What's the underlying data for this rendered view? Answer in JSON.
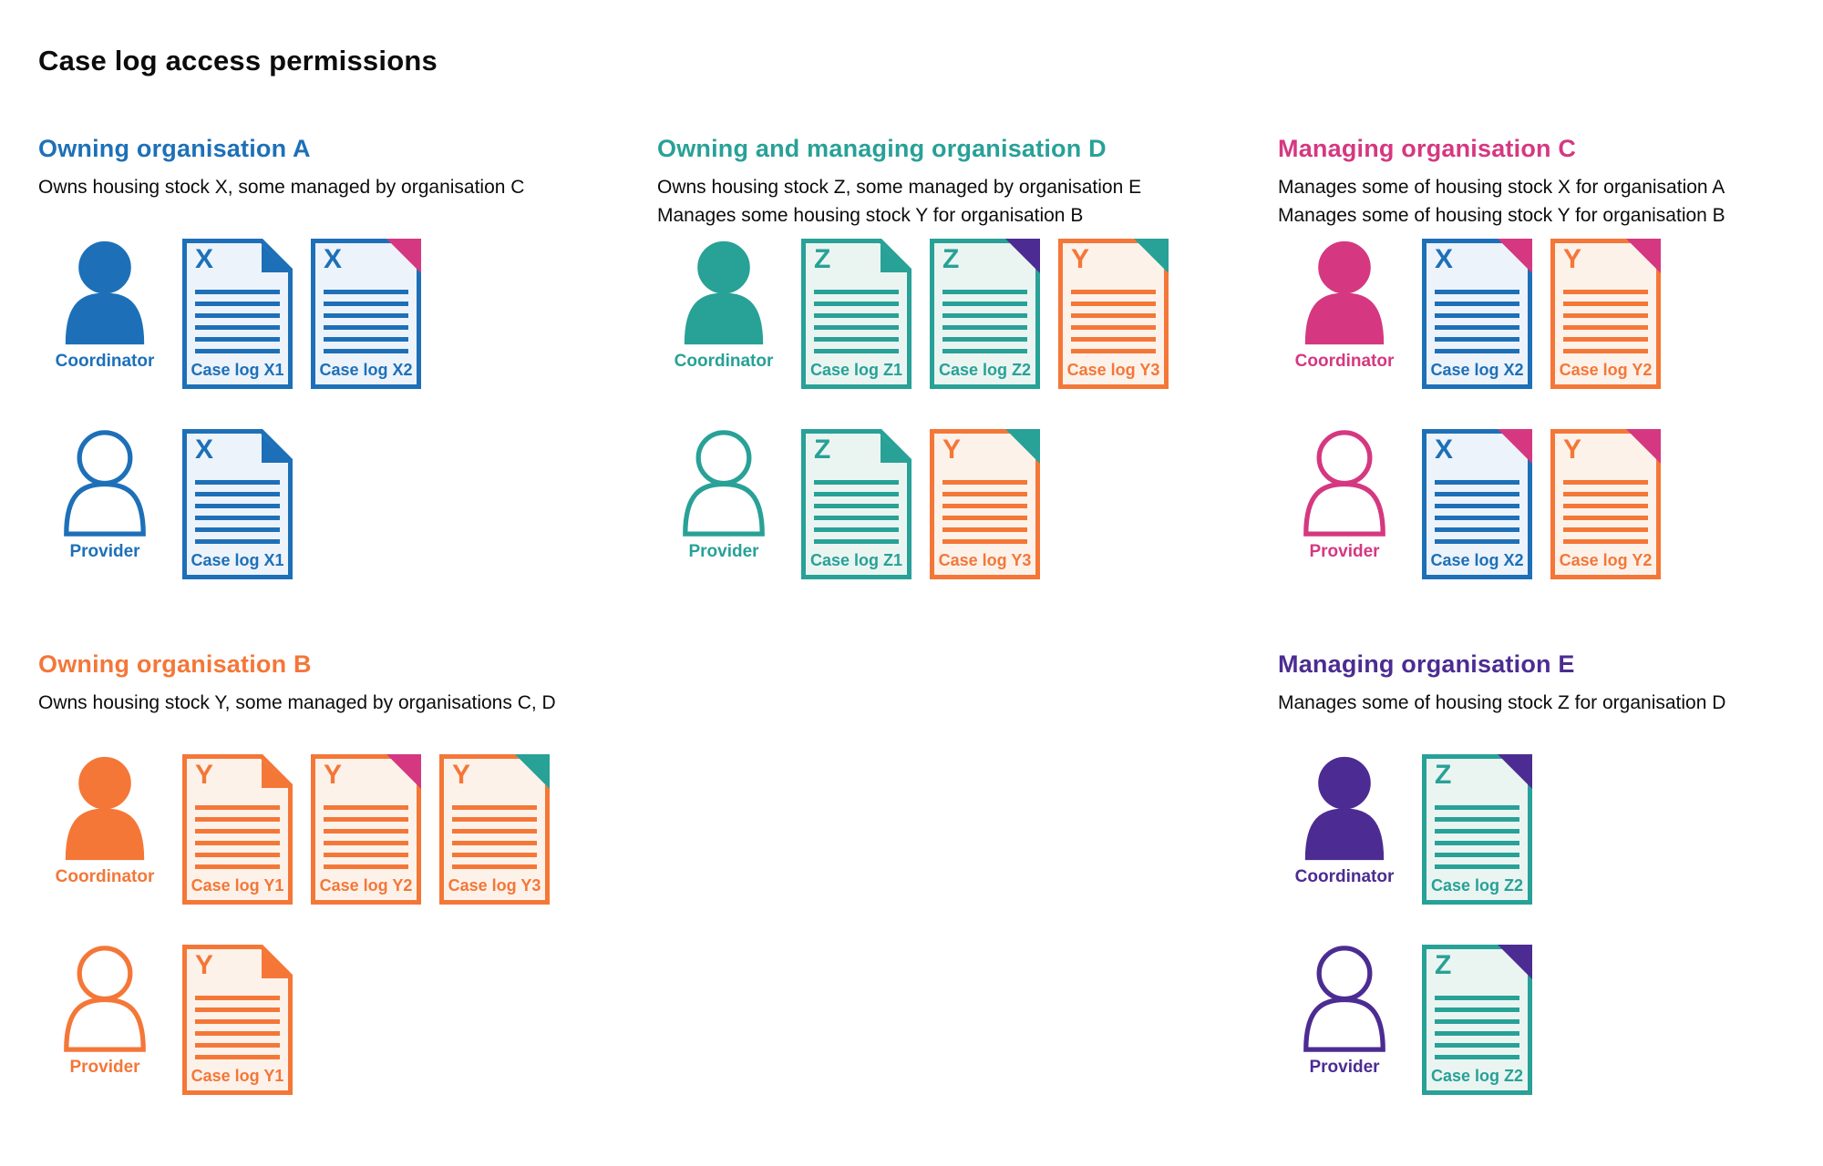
{
  "page": {
    "title": "Case log access permissions"
  },
  "colors": {
    "blue": "#1d70b8",
    "teal": "#28a197",
    "pink": "#d53880",
    "orange": "#f47738",
    "purple": "#4c2c92",
    "text": "#0b0c0c"
  },
  "tints": {
    "blue": "#edf3fa",
    "teal": "#eaf5f2",
    "orange": "#fdf2ea"
  },
  "sections": [
    {
      "id": "owning-organisation-a",
      "heading": "Owning organisation A",
      "color": "blue",
      "description": [
        "Owns housing stock X, some managed by organisation C"
      ],
      "rows": [
        {
          "role": "Coordinator",
          "icon": "person-filled-icon",
          "docs": [
            {
              "letter": "X",
              "label": "Case log X1",
              "doc_color": "blue",
              "fold_color": "blue",
              "fold_style": "own"
            },
            {
              "letter": "X",
              "label": "Case log X2",
              "doc_color": "blue",
              "fold_color": "pink",
              "fold_style": "foreign"
            }
          ]
        },
        {
          "role": "Provider",
          "icon": "person-outline-icon",
          "docs": [
            {
              "letter": "X",
              "label": "Case log X1",
              "doc_color": "blue",
              "fold_color": "blue",
              "fold_style": "own"
            }
          ]
        }
      ]
    },
    {
      "id": "owning-and-managing-organisation-d",
      "heading": "Owning and managing organisation D",
      "color": "teal",
      "description": [
        "Owns housing stock Z, some managed by organisation E",
        "Manages some housing stock Y for organisation B"
      ],
      "rows": [
        {
          "role": "Coordinator",
          "icon": "person-filled-icon",
          "docs": [
            {
              "letter": "Z",
              "label": "Case log Z1",
              "doc_color": "teal",
              "fold_color": "teal",
              "fold_style": "own"
            },
            {
              "letter": "Z",
              "label": "Case log Z2",
              "doc_color": "teal",
              "fold_color": "purple",
              "fold_style": "foreign"
            },
            {
              "letter": "Y",
              "label": "Case log Y3",
              "doc_color": "orange",
              "fold_color": "teal",
              "fold_style": "foreign"
            }
          ]
        },
        {
          "role": "Provider",
          "icon": "person-outline-icon",
          "docs": [
            {
              "letter": "Z",
              "label": "Case log Z1",
              "doc_color": "teal",
              "fold_color": "teal",
              "fold_style": "own"
            },
            {
              "letter": "Y",
              "label": "Case log Y3",
              "doc_color": "orange",
              "fold_color": "teal",
              "fold_style": "foreign"
            }
          ]
        }
      ]
    },
    {
      "id": "managing-organisation-c",
      "heading": "Managing organisation C",
      "color": "pink",
      "description": [
        "Manages some of housing stock X for organisation A",
        "Manages some of housing stock Y for organisation B"
      ],
      "rows": [
        {
          "role": "Coordinator",
          "icon": "person-filled-icon",
          "docs": [
            {
              "letter": "X",
              "label": "Case log X2",
              "doc_color": "blue",
              "fold_color": "pink",
              "fold_style": "foreign"
            },
            {
              "letter": "Y",
              "label": "Case log Y2",
              "doc_color": "orange",
              "fold_color": "pink",
              "fold_style": "foreign"
            }
          ]
        },
        {
          "role": "Provider",
          "icon": "person-outline-icon",
          "docs": [
            {
              "letter": "X",
              "label": "Case log X2",
              "doc_color": "blue",
              "fold_color": "pink",
              "fold_style": "foreign"
            },
            {
              "letter": "Y",
              "label": "Case log Y2",
              "doc_color": "orange",
              "fold_color": "pink",
              "fold_style": "foreign"
            }
          ]
        }
      ]
    },
    {
      "id": "owning-organisation-b",
      "heading": "Owning organisation B",
      "color": "orange",
      "description": [
        "Owns housing stock Y, some managed by organisations C, D"
      ],
      "rows": [
        {
          "role": "Coordinator",
          "icon": "person-filled-icon",
          "docs": [
            {
              "letter": "Y",
              "label": "Case log Y1",
              "doc_color": "orange",
              "fold_color": "orange",
              "fold_style": "own"
            },
            {
              "letter": "Y",
              "label": "Case log Y2",
              "doc_color": "orange",
              "fold_color": "pink",
              "fold_style": "foreign"
            },
            {
              "letter": "Y",
              "label": "Case log Y3",
              "doc_color": "orange",
              "fold_color": "teal",
              "fold_style": "foreign"
            }
          ]
        },
        {
          "role": "Provider",
          "icon": "person-outline-icon",
          "docs": [
            {
              "letter": "Y",
              "label": "Case log Y1",
              "doc_color": "orange",
              "fold_color": "orange",
              "fold_style": "own"
            }
          ]
        }
      ]
    },
    {
      "id": "managing-organisation-e",
      "heading": "Managing organisation E",
      "color": "purple",
      "description": [
        "Manages some of housing stock Z for organisation D"
      ],
      "rows": [
        {
          "role": "Coordinator",
          "icon": "person-filled-icon",
          "docs": [
            {
              "letter": "Z",
              "label": "Case log Z2",
              "doc_color": "teal",
              "fold_color": "purple",
              "fold_style": "foreign"
            }
          ]
        },
        {
          "role": "Provider",
          "icon": "person-outline-icon",
          "docs": [
            {
              "letter": "Z",
              "label": "Case log Z2",
              "doc_color": "teal",
              "fold_color": "purple",
              "fold_style": "foreign"
            }
          ]
        }
      ]
    }
  ]
}
